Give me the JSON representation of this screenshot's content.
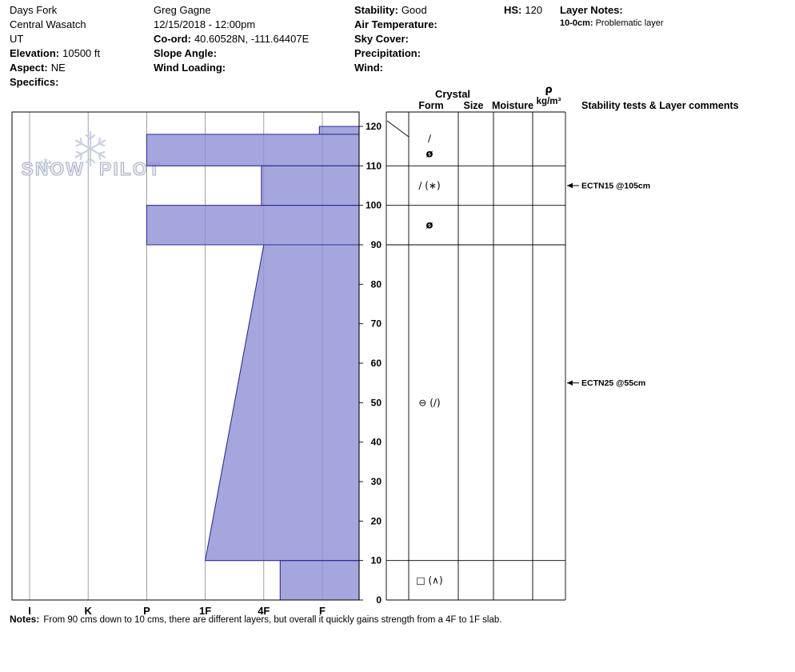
{
  "header": {
    "location": {
      "area": "Days Fork",
      "range": "Central Wasatch",
      "state": "UT",
      "elevation_label": "Elevation:",
      "elevation_value": "10500 ft",
      "aspect_label": "Aspect:",
      "aspect_value": "NE",
      "specifics_label": "Specifics:"
    },
    "observer": {
      "name": "Greg Gagne",
      "datetime": "12/15/2018 - 12:00pm",
      "coord_label": "Co-ord:",
      "coord_value": "40.60528N, -111.64407E",
      "slope_angle_label": "Slope Angle:",
      "wind_loading_label": "Wind Loading:"
    },
    "conditions": {
      "stability_label": "Stability:",
      "stability_value": "Good",
      "air_temperature_label": "Air Temperature:",
      "sky_cover_label": "Sky Cover:",
      "precipitation_label": "Precipitation:",
      "wind_label": "Wind:"
    },
    "hs": {
      "label": "HS:",
      "value": "120"
    },
    "layer_notes": {
      "label": "Layer Notes:",
      "entries": [
        {
          "range": "10-0cm:",
          "text": "Problematic layer"
        }
      ]
    }
  },
  "watermark": {
    "word1": "SNOW",
    "word2": "PILOT"
  },
  "chart_data": {
    "type": "area",
    "hardness_scale": [
      "I",
      "K",
      "P",
      "1F",
      "4F",
      "F"
    ],
    "depth_axis": {
      "unit": "cm",
      "min": 0,
      "max": 120,
      "ticks": [
        0,
        10,
        20,
        30,
        40,
        50,
        60,
        70,
        80,
        90,
        100,
        110,
        120
      ]
    },
    "total_depth_hs": 120,
    "layers": [
      {
        "top_cm": 120,
        "bottom_cm": 118,
        "hardness": "F",
        "h_top": 4.95,
        "h_bottom": 4.95
      },
      {
        "top_cm": 118,
        "bottom_cm": 110,
        "hardness": "P",
        "h_top": 2.0,
        "h_bottom": 2.0
      },
      {
        "top_cm": 110,
        "bottom_cm": 100,
        "hardness": "4F",
        "h_top": 3.96,
        "h_bottom": 3.96
      },
      {
        "top_cm": 100,
        "bottom_cm": 90,
        "hardness": "P",
        "h_top": 2.0,
        "h_bottom": 2.0
      },
      {
        "top_cm": 90,
        "bottom_cm": 10,
        "hardness": "4F to 1F",
        "h_top": 4.0,
        "h_bottom": 3.0
      },
      {
        "top_cm": 10,
        "bottom_cm": 0,
        "hardness": "4F-",
        "h_top": 4.28,
        "h_bottom": 4.28
      }
    ],
    "boundary_rows_cm": [
      110,
      100,
      90,
      10,
      0
    ],
    "grain_rows": [
      {
        "depth_cm": 117,
        "form": "∕",
        "bold": false
      },
      {
        "depth_cm": 113,
        "form": "ø",
        "bold": true
      },
      {
        "depth_cm": 105,
        "form": "∕ (∗)",
        "bold": false
      },
      {
        "depth_cm": 95,
        "form": "ø",
        "bold": true
      },
      {
        "depth_cm": 50,
        "form": "⊖ (∕)",
        "bold": false
      },
      {
        "depth_cm": 5,
        "form": "□ (∧)",
        "bold": false
      }
    ],
    "table": {
      "group_header": "Crystal",
      "col_form": "Form",
      "col_size": "Size",
      "col_moisture": "Moisture",
      "density_symbol": "ρ",
      "density_unit": "kg/m³",
      "comments_header": "Stability tests & Layer comments"
    },
    "stability_tests": [
      {
        "label": "ECTN15 @105cm",
        "depth_cm": 105
      },
      {
        "label": "ECTN25 @55cm",
        "depth_cm": 55
      }
    ],
    "colors": {
      "layer_fill": "#9090d6",
      "layer_stroke": "#2e2e9a",
      "grid": "#8a8a8a",
      "axis": "#000000",
      "watermark_fill": "#eceef5",
      "watermark_stroke": "#a7adc4",
      "snowflake": "#c9cfe2"
    }
  },
  "notes": {
    "label": "Notes:",
    "text": "From 90 cms down to 10 cms, there are different layers, but overall it quickly gains strength from a 4F to 1F slab."
  }
}
